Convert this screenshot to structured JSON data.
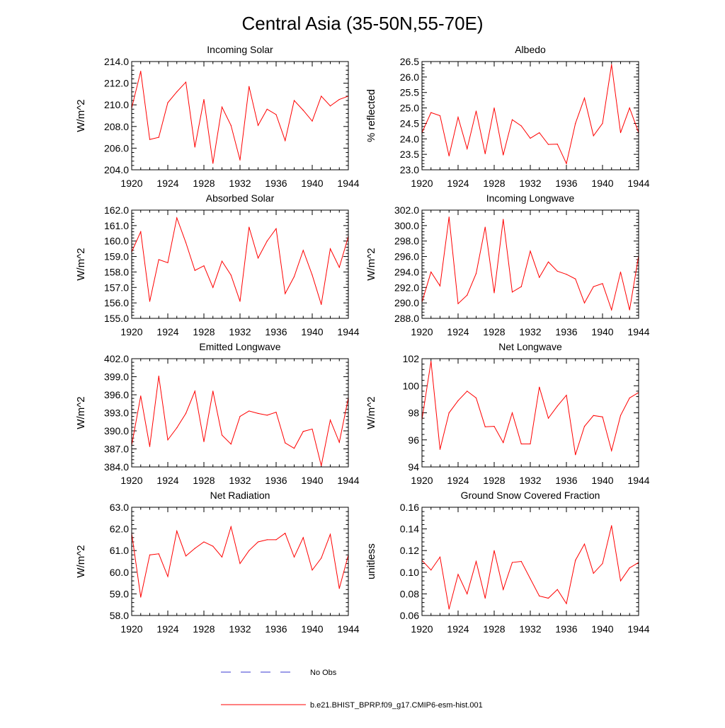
{
  "figure": {
    "title": "Central Asia (35-50N,55-70E)"
  },
  "colors": {
    "model": "#ff0000",
    "obs": "#3a3ad0",
    "axis": "#000000",
    "background": "#ffffff"
  },
  "legend": {
    "obs_label": "No Obs",
    "model_label": "b.e21.BHIST_BPRP.f09_g17.CMIP6-esm-hist.001"
  },
  "chart_data": [
    {
      "type": "line",
      "title": "Incoming Solar",
      "ylabel": "W/m^2",
      "xlim": [
        1920,
        1944
      ],
      "ylim": [
        204,
        214
      ],
      "xticks": [
        1920,
        1924,
        1928,
        1932,
        1936,
        1940,
        1944
      ],
      "xtick_labels": [
        "1920",
        "1924",
        "1928",
        "1932",
        "1936",
        "1940",
        "1944"
      ],
      "yticks": [
        204,
        206,
        208,
        210,
        212,
        214
      ],
      "ytick_labels": [
        "204.0",
        "206.0",
        "208.0",
        "210.0",
        "212.0",
        "214.0"
      ],
      "x": [
        1920,
        1921,
        1922,
        1923,
        1924,
        1925,
        1926,
        1927,
        1928,
        1929,
        1930,
        1931,
        1932,
        1933,
        1934,
        1935,
        1936,
        1937,
        1938,
        1939,
        1940,
        1941,
        1942,
        1943,
        1944
      ],
      "series": [
        {
          "name": "b.e21.BHIST_BPRP.f09_g17.CMIP6-esm-hist.001",
          "values": [
            209.7,
            213.1,
            206.8,
            207.0,
            210.2,
            211.2,
            212.1,
            206.1,
            210.5,
            204.6,
            209.8,
            208.1,
            204.9,
            211.7,
            208.1,
            209.6,
            209.1,
            206.7,
            210.4,
            209.5,
            208.5,
            210.8,
            209.9,
            210.5,
            210.8
          ]
        }
      ]
    },
    {
      "type": "line",
      "title": "Albedo",
      "ylabel": "% reflected",
      "xlim": [
        1920,
        1944
      ],
      "ylim": [
        23,
        26.5
      ],
      "xticks": [
        1920,
        1924,
        1928,
        1932,
        1936,
        1940,
        1944
      ],
      "xtick_labels": [
        "1920",
        "1924",
        "1928",
        "1932",
        "1936",
        "1940",
        "1944"
      ],
      "yticks": [
        23,
        23.5,
        24,
        24.5,
        25,
        25.5,
        26,
        26.5
      ],
      "ytick_labels": [
        "23.0",
        "23.5",
        "24.0",
        "24.5",
        "25.0",
        "25.5",
        "26.0",
        "26.5"
      ],
      "x": [
        1920,
        1921,
        1922,
        1923,
        1924,
        1925,
        1926,
        1927,
        1928,
        1929,
        1930,
        1931,
        1932,
        1933,
        1934,
        1935,
        1936,
        1937,
        1938,
        1939,
        1940,
        1941,
        1942,
        1943,
        1944
      ],
      "series": [
        {
          "name": "b.e21.BHIST_BPRP.f09_g17.CMIP6-esm-hist.001",
          "values": [
            24.2,
            24.85,
            24.75,
            23.45,
            24.7,
            23.68,
            24.9,
            23.52,
            25.0,
            23.48,
            24.62,
            24.42,
            24.02,
            24.2,
            23.82,
            23.83,
            23.2,
            24.5,
            25.32,
            24.1,
            24.5,
            26.4,
            24.2,
            25.0,
            24.2
          ]
        }
      ]
    },
    {
      "type": "line",
      "title": "Absorbed Solar",
      "ylabel": "W/m^2",
      "xlim": [
        1920,
        1944
      ],
      "ylim": [
        155,
        162
      ],
      "xticks": [
        1920,
        1924,
        1928,
        1932,
        1936,
        1940,
        1944
      ],
      "xtick_labels": [
        "1920",
        "1924",
        "1928",
        "1932",
        "1936",
        "1940",
        "1944"
      ],
      "yticks": [
        155,
        156,
        157,
        158,
        159,
        160,
        161,
        162
      ],
      "ytick_labels": [
        "155.0",
        "156.0",
        "157.0",
        "158.0",
        "159.0",
        "160.0",
        "161.0",
        "162.0"
      ],
      "x": [
        1920,
        1921,
        1922,
        1923,
        1924,
        1925,
        1926,
        1927,
        1928,
        1929,
        1930,
        1931,
        1932,
        1933,
        1934,
        1935,
        1936,
        1937,
        1938,
        1939,
        1940,
        1941,
        1942,
        1943,
        1944
      ],
      "series": [
        {
          "name": "b.e21.BHIST_BPRP.f09_g17.CMIP6-esm-hist.001",
          "values": [
            159.3,
            160.6,
            156.1,
            158.8,
            158.6,
            161.5,
            159.9,
            158.1,
            158.4,
            157.0,
            158.7,
            157.8,
            156.1,
            160.9,
            158.9,
            160.0,
            160.8,
            156.6,
            157.7,
            159.4,
            157.8,
            155.9,
            159.5,
            158.3,
            160.3
          ]
        }
      ]
    },
    {
      "type": "line",
      "title": "Incoming Longwave",
      "ylabel": "W/m^2",
      "xlim": [
        1920,
        1944
      ],
      "ylim": [
        288,
        302
      ],
      "xticks": [
        1920,
        1924,
        1928,
        1932,
        1936,
        1940,
        1944
      ],
      "xtick_labels": [
        "1920",
        "1924",
        "1928",
        "1932",
        "1936",
        "1940",
        "1944"
      ],
      "yticks": [
        288,
        290,
        292,
        294,
        296,
        298,
        300,
        302
      ],
      "ytick_labels": [
        "288.0",
        "290.0",
        "292.0",
        "294.0",
        "296.0",
        "298.0",
        "300.0",
        "302.0"
      ],
      "x": [
        1920,
        1921,
        1922,
        1923,
        1924,
        1925,
        1926,
        1927,
        1928,
        1929,
        1930,
        1931,
        1932,
        1933,
        1934,
        1935,
        1936,
        1937,
        1938,
        1939,
        1940,
        1941,
        1942,
        1943,
        1944
      ],
      "series": [
        {
          "name": "b.e21.BHIST_BPRP.f09_g17.CMIP6-esm-hist.001",
          "values": [
            290.1,
            294.0,
            292.2,
            301.1,
            289.9,
            291.0,
            293.8,
            299.8,
            291.3,
            300.8,
            291.4,
            292.1,
            296.7,
            293.3,
            295.3,
            294.1,
            293.7,
            293.1,
            290.0,
            292.1,
            292.5,
            289.1,
            294.0,
            289.1,
            296.1
          ]
        }
      ]
    },
    {
      "type": "line",
      "title": "Emitted Longwave",
      "ylabel": "W/m^2",
      "xlim": [
        1920,
        1944
      ],
      "ylim": [
        384,
        402
      ],
      "xticks": [
        1920,
        1924,
        1928,
        1932,
        1936,
        1940,
        1944
      ],
      "xtick_labels": [
        "1920",
        "1924",
        "1928",
        "1932",
        "1936",
        "1940",
        "1944"
      ],
      "yticks": [
        384,
        387,
        390,
        393,
        396,
        399,
        402
      ],
      "ytick_labels": [
        "384.0",
        "387.0",
        "390.0",
        "393.0",
        "396.0",
        "399.0",
        "402.0"
      ],
      "x": [
        1920,
        1921,
        1922,
        1923,
        1924,
        1925,
        1926,
        1927,
        1928,
        1929,
        1930,
        1931,
        1932,
        1933,
        1934,
        1935,
        1936,
        1937,
        1938,
        1939,
        1940,
        1941,
        1942,
        1943,
        1944
      ],
      "series": [
        {
          "name": "b.e21.BHIST_BPRP.f09_g17.CMIP6-esm-hist.001",
          "values": [
            387.6,
            395.8,
            387.4,
            399.1,
            388.5,
            390.5,
            392.9,
            396.6,
            388.2,
            396.6,
            389.3,
            387.8,
            392.4,
            393.3,
            392.9,
            392.6,
            393.1,
            388.0,
            387.1,
            389.9,
            390.3,
            384.2,
            391.8,
            388.1,
            395.5
          ]
        }
      ]
    },
    {
      "type": "line",
      "title": "Net Longwave",
      "ylabel": "W/m^2",
      "xlim": [
        1920,
        1944
      ],
      "ylim": [
        94,
        102
      ],
      "xticks": [
        1920,
        1924,
        1928,
        1932,
        1936,
        1940,
        1944
      ],
      "xtick_labels": [
        "1920",
        "1924",
        "1928",
        "1932",
        "1936",
        "1940",
        "1944"
      ],
      "yticks": [
        94,
        96,
        98,
        100,
        102
      ],
      "ytick_labels": [
        "94",
        "96",
        "98",
        "100",
        "102"
      ],
      "x": [
        1920,
        1921,
        1922,
        1923,
        1924,
        1925,
        1926,
        1927,
        1928,
        1929,
        1930,
        1931,
        1932,
        1933,
        1934,
        1935,
        1936,
        1937,
        1938,
        1939,
        1940,
        1941,
        1942,
        1943,
        1944
      ],
      "series": [
        {
          "name": "b.e21.BHIST_BPRP.f09_g17.CMIP6-esm-hist.001",
          "values": [
            97.5,
            101.8,
            95.3,
            98.0,
            98.9,
            99.6,
            99.1,
            96.97,
            97.0,
            95.8,
            98.0,
            95.7,
            95.7,
            99.9,
            97.6,
            98.5,
            99.3,
            94.9,
            97.0,
            97.8,
            97.7,
            95.2,
            97.8,
            99.1,
            99.5
          ]
        }
      ]
    },
    {
      "type": "line",
      "title": "Net Radiation",
      "ylabel": "W/m^2",
      "xlim": [
        1920,
        1944
      ],
      "ylim": [
        58,
        63
      ],
      "xticks": [
        1920,
        1924,
        1928,
        1932,
        1936,
        1940,
        1944
      ],
      "xtick_labels": [
        "1920",
        "1924",
        "1928",
        "1932",
        "1936",
        "1940",
        "1944"
      ],
      "yticks": [
        58,
        59,
        60,
        61,
        62,
        63
      ],
      "ytick_labels": [
        "58.0",
        "59.0",
        "60.0",
        "61.0",
        "62.0",
        "63.0"
      ],
      "x": [
        1920,
        1921,
        1922,
        1923,
        1924,
        1925,
        1926,
        1927,
        1928,
        1929,
        1930,
        1931,
        1932,
        1933,
        1934,
        1935,
        1936,
        1937,
        1938,
        1939,
        1940,
        1941,
        1942,
        1943,
        1944
      ],
      "series": [
        {
          "name": "b.e21.BHIST_BPRP.f09_g17.CMIP6-esm-hist.001",
          "values": [
            61.8,
            58.85,
            60.8,
            60.85,
            59.8,
            61.9,
            60.75,
            61.1,
            61.4,
            61.2,
            60.7,
            62.1,
            60.4,
            61.0,
            61.4,
            61.5,
            61.5,
            61.8,
            60.7,
            61.6,
            60.1,
            60.65,
            61.75,
            59.25,
            60.8
          ]
        }
      ]
    },
    {
      "type": "line",
      "title": "Ground Snow Covered Fraction",
      "ylabel": "unitless",
      "xlim": [
        1920,
        1944
      ],
      "ylim": [
        0.06,
        0.16
      ],
      "xticks": [
        1920,
        1924,
        1928,
        1932,
        1936,
        1940,
        1944
      ],
      "xtick_labels": [
        "1920",
        "1924",
        "1928",
        "1932",
        "1936",
        "1940",
        "1944"
      ],
      "yticks": [
        0.06,
        0.08,
        0.1,
        0.12,
        0.14,
        0.16
      ],
      "ytick_labels": [
        "0.06",
        "0.08",
        "0.10",
        "0.12",
        "0.14",
        "0.16"
      ],
      "x": [
        1920,
        1921,
        1922,
        1923,
        1924,
        1925,
        1926,
        1927,
        1928,
        1929,
        1930,
        1931,
        1932,
        1933,
        1934,
        1935,
        1936,
        1937,
        1938,
        1939,
        1940,
        1941,
        1942,
        1943,
        1944
      ],
      "series": [
        {
          "name": "b.e21.BHIST_BPRP.f09_g17.CMIP6-esm-hist.001",
          "values": [
            0.111,
            0.102,
            0.114,
            0.066,
            0.098,
            0.08,
            0.11,
            0.076,
            0.12,
            0.084,
            0.109,
            0.11,
            0.094,
            0.078,
            0.076,
            0.084,
            0.071,
            0.111,
            0.126,
            0.099,
            0.108,
            0.143,
            0.092,
            0.104,
            0.109
          ]
        }
      ]
    }
  ]
}
